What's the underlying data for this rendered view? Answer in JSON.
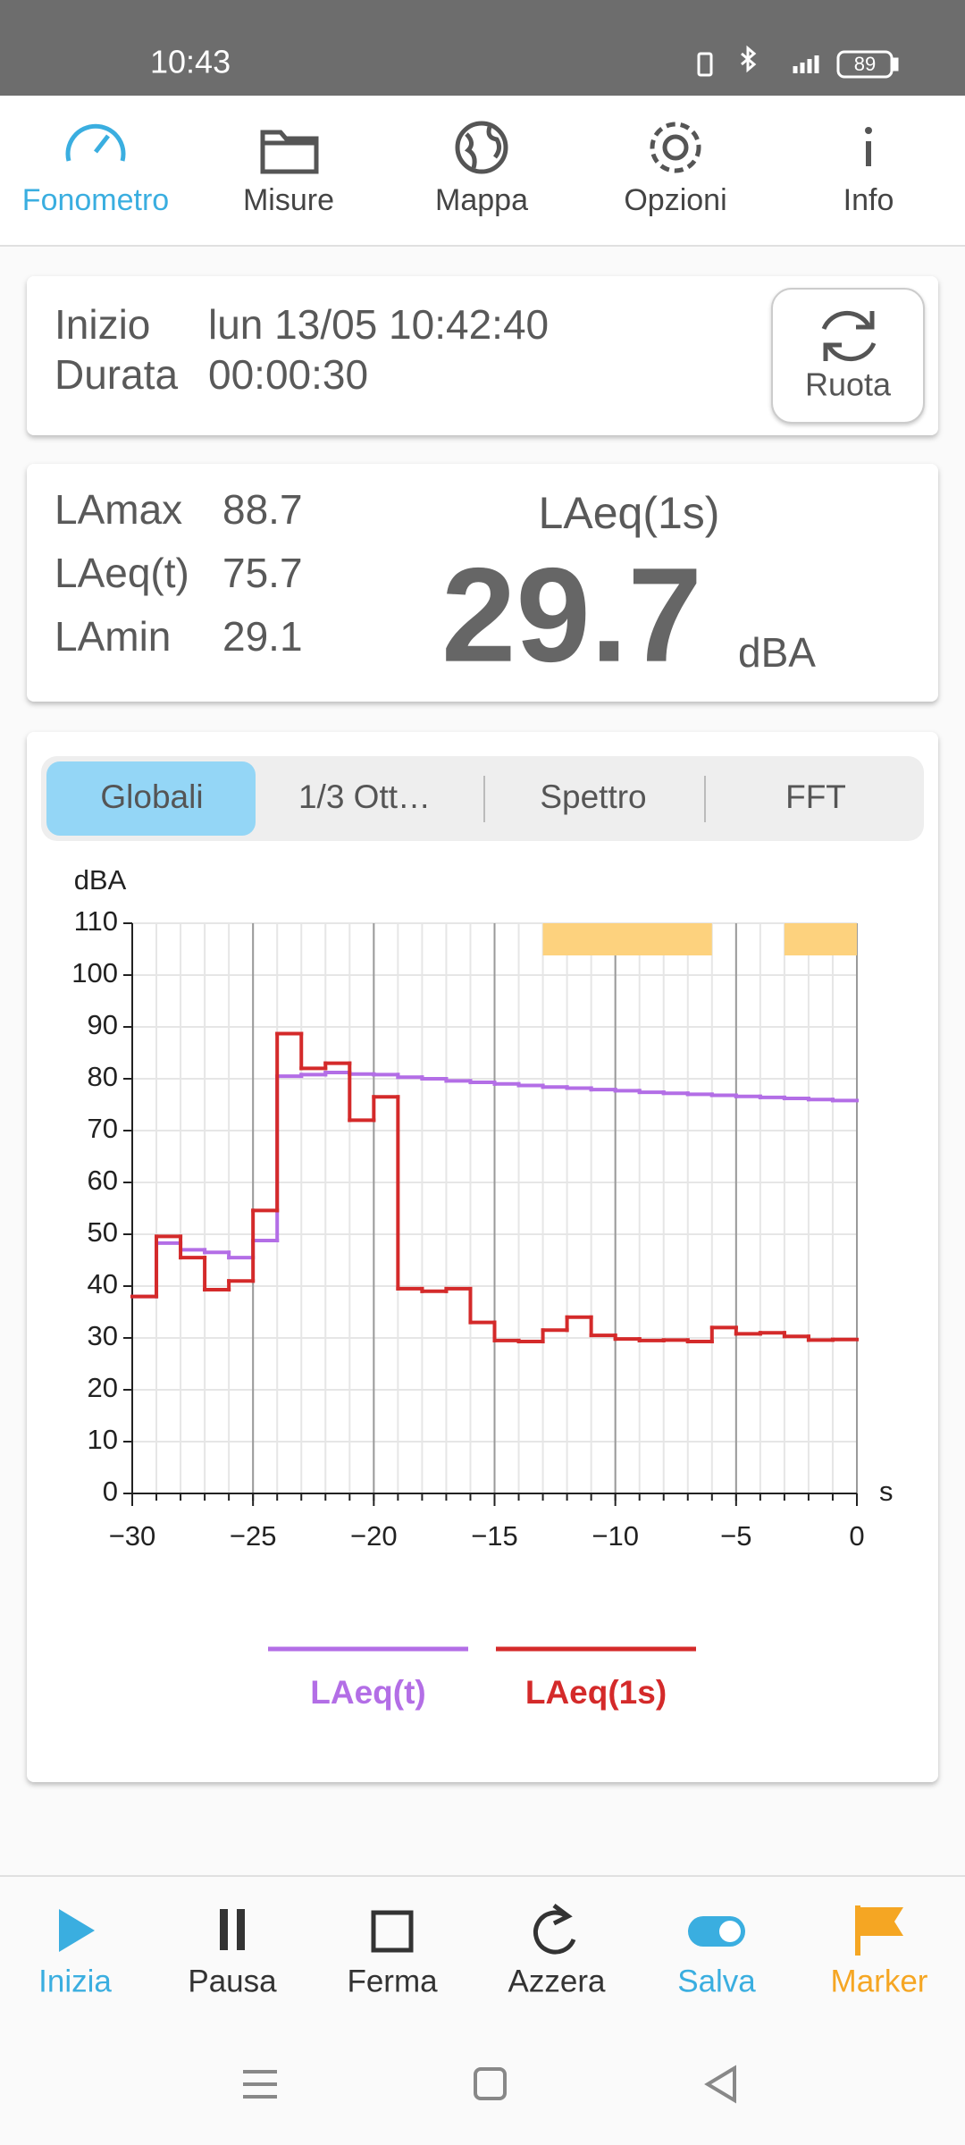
{
  "status_bar": {
    "time": "10:43",
    "battery": "89"
  },
  "top_tabs": [
    "Fonometro",
    "Misure",
    "Mappa",
    "Opzioni",
    "Info"
  ],
  "session": {
    "start_label": "Inizio",
    "start_value": "lun 13/05 10:42:40",
    "duration_label": "Durata",
    "duration_value": "00:00:30",
    "rotate_button": "Ruota"
  },
  "levels": {
    "stats": [
      {
        "label": "LAmax",
        "value": "88.7"
      },
      {
        "label": "LAeq(t)",
        "value": "75.7"
      },
      {
        "label": "LAmin",
        "value": "29.1"
      }
    ],
    "main_label": "LAeq(1s)",
    "main_value": "29.7",
    "unit": "dBA"
  },
  "chart_tabs": [
    "Globali",
    "1/3 Ott…",
    "Spettro",
    "FFT"
  ],
  "chart_data": {
    "type": "line",
    "drawstyle": "steps",
    "y_label": "dBA",
    "x_label": "s",
    "xlim": [
      -30,
      0
    ],
    "ylim": [
      0,
      110
    ],
    "xticks": [
      {
        "value": -30,
        "label": "−30"
      },
      {
        "value": -25,
        "label": "−25"
      },
      {
        "value": -20,
        "label": "−20"
      },
      {
        "value": -15,
        "label": "−15"
      },
      {
        "value": -10,
        "label": "−10"
      },
      {
        "value": -5,
        "label": "−5"
      },
      0
    ],
    "yticks": [
      0,
      10,
      20,
      30,
      40,
      50,
      60,
      70,
      80,
      90,
      100,
      110
    ],
    "grid": true,
    "x": [
      -30,
      -29,
      -28,
      -27,
      -26,
      -25,
      -24,
      -23,
      -22,
      -21,
      -20,
      -19,
      -18,
      -17,
      -16,
      -15,
      -14,
      -13,
      -12,
      -11,
      -10,
      -9,
      -8,
      -7,
      -6,
      -5,
      -4,
      -3,
      -2,
      -1
    ],
    "series": [
      {
        "name": "LAeq(t)",
        "color": "#b36ee6",
        "values": [
          38,
          48.3,
          47,
          46.5,
          45.5,
          48.8,
          80.5,
          80.8,
          81.2,
          80.9,
          80.8,
          80.3,
          80.0,
          79.6,
          79.3,
          79.0,
          78.7,
          78.4,
          78.2,
          77.9,
          77.7,
          77.4,
          77.2,
          77.0,
          76.8,
          76.6,
          76.4,
          76.2,
          76.0,
          75.8
        ]
      },
      {
        "name": "LAeq(1s)",
        "color": "#d42a2a",
        "values": [
          38,
          49.6,
          45.5,
          39.3,
          41,
          54.6,
          88.7,
          82,
          83,
          72,
          76.5,
          39.5,
          39,
          39.5,
          33,
          29.5,
          29.3,
          31.5,
          34,
          30.5,
          29.8,
          29.5,
          29.6,
          29.3,
          32,
          30.8,
          31,
          30.3,
          29.6,
          29.7
        ]
      }
    ],
    "markers": {
      "color": "#fdd27e",
      "spans": [
        {
          "start": -13,
          "end": -6
        },
        {
          "start": -3,
          "end": 0
        }
      ]
    }
  },
  "bottom_actions": [
    "Inizia",
    "Pausa",
    "Ferma",
    "Azzera",
    "Salva",
    "Marker"
  ]
}
